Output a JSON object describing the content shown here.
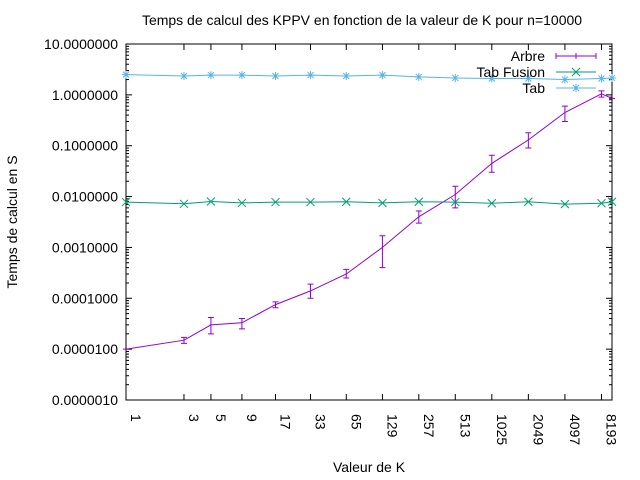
{
  "chart_data": {
    "type": "line",
    "title": "Temps de calcul des KPPV en fonction de la valeur de K pour n=10000",
    "xlabel": "Valeur de K",
    "ylabel": "Temps de calcul en S",
    "xscale": "log2",
    "yscale": "log10",
    "xlim": [
      1,
      10000
    ],
    "ylim": [
      1e-06,
      10
    ],
    "grid": false,
    "legend_position": "top-right",
    "x_ticks": [
      "1",
      "3",
      "5",
      "9",
      "17",
      "33",
      "65",
      "129",
      "257",
      "513",
      "1025",
      "2049",
      "4097",
      "8193"
    ],
    "y_ticks": [
      "10.0000000",
      "1.0000000",
      "0.1000000",
      "0.0100000",
      "0.0010000",
      "0.0001000",
      "0.0000100",
      "0.0000010"
    ],
    "x": [
      1,
      3,
      5,
      9,
      17,
      33,
      65,
      129,
      257,
      513,
      1025,
      2049,
      4097,
      8193,
      10000
    ],
    "series": [
      {
        "name": "Arbre",
        "color": "#9400d3",
        "marker": "errorbar",
        "values": [
          1e-05,
          1.5e-05,
          3e-05,
          3.3e-05,
          7.5e-05,
          0.00014,
          0.0003,
          0.001,
          0.004,
          0.011,
          0.045,
          0.13,
          0.45,
          1.05,
          0.85
        ],
        "err_low": [
          1e-05,
          1.3e-05,
          2e-05,
          2.5e-05,
          6.5e-05,
          0.0001,
          0.00025,
          0.0004,
          0.003,
          0.006,
          0.03,
          0.09,
          0.3,
          0.9,
          0.85
        ],
        "err_high": [
          1e-05,
          1.7e-05,
          4.2e-05,
          4e-05,
          8.5e-05,
          0.00019,
          0.00037,
          0.0017,
          0.0052,
          0.016,
          0.065,
          0.18,
          0.6,
          1.2,
          0.85
        ]
      },
      {
        "name": "Tab Fusion",
        "color": "#009e73",
        "marker": "x",
        "values": [
          0.0078,
          0.0072,
          0.008,
          0.0075,
          0.0078,
          0.0078,
          0.0079,
          0.0075,
          0.0079,
          0.0078,
          0.0074,
          0.0079,
          0.0071,
          0.0074,
          0.0079
        ]
      },
      {
        "name": "Tab",
        "color": "#56b4e9",
        "marker": "star",
        "values": [
          2.5,
          2.35,
          2.45,
          2.45,
          2.35,
          2.45,
          2.35,
          2.45,
          2.25,
          2.15,
          2.1,
          2.1,
          2.0,
          2.1,
          2.15
        ]
      }
    ]
  }
}
